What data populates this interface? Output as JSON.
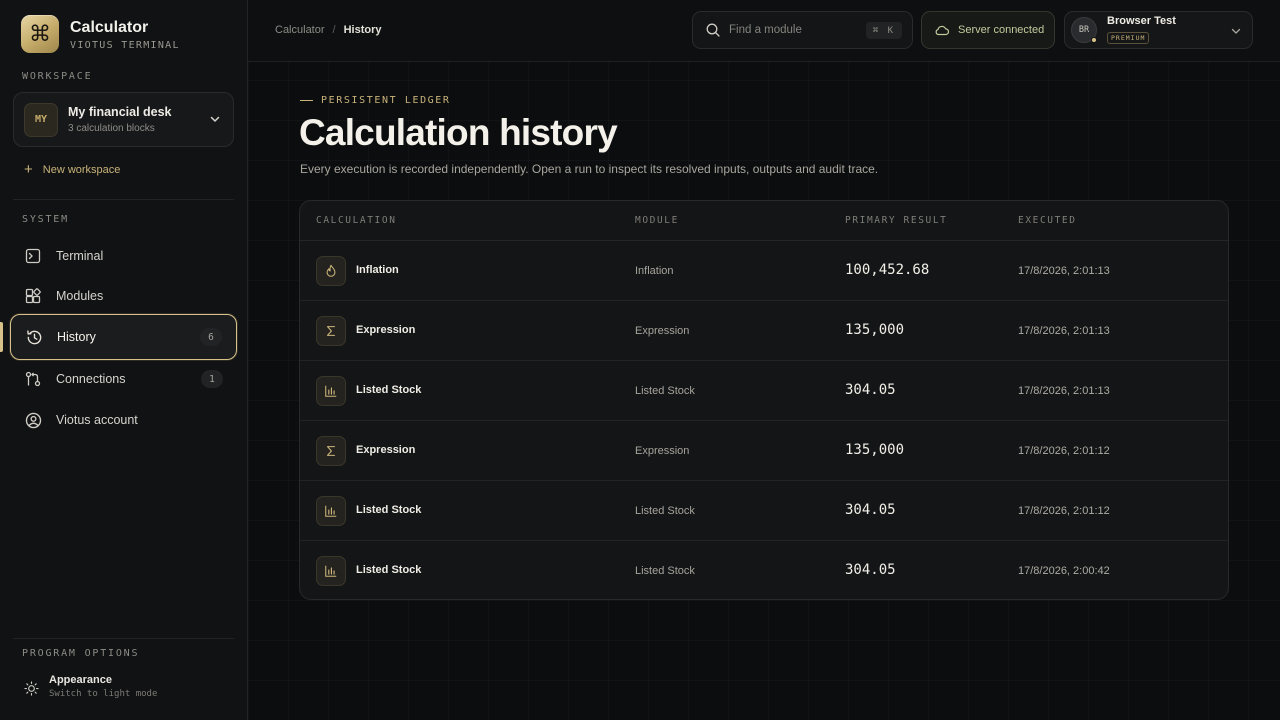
{
  "app": {
    "title": "Calculator",
    "subtitle": "VIOTUS TERMINAL",
    "logo_icon": "command-icon"
  },
  "workspace": {
    "section_label": "WORKSPACE",
    "avatar": "MY",
    "name": "My financial desk",
    "count": "3 calculation blocks",
    "new_label": "New workspace"
  },
  "system": {
    "section_label": "SYSTEM",
    "items": [
      {
        "label": "Terminal",
        "icon": "terminal-icon",
        "badge": ""
      },
      {
        "label": "Modules",
        "icon": "modules-icon",
        "badge": ""
      },
      {
        "label": "History",
        "icon": "history-icon",
        "badge": "6",
        "active": true
      },
      {
        "label": "Connections",
        "icon": "connections-icon",
        "badge": "1"
      },
      {
        "label": "Viotus account",
        "icon": "account-icon",
        "badge": ""
      }
    ]
  },
  "program_options": {
    "section_label": "PROGRAM OPTIONS",
    "appearance_title": "Appearance",
    "appearance_sub": "Switch to light mode"
  },
  "breadcrumb": {
    "root": "Calculator",
    "separator": "/",
    "current": "History"
  },
  "search": {
    "placeholder": "Find a module",
    "shortcut": "⌘ K"
  },
  "server": {
    "label": "Server connected"
  },
  "user": {
    "initials": "BR",
    "name": "Browser Test",
    "tier": "PREMIUM"
  },
  "page": {
    "eyebrow": "PERSISTENT LEDGER",
    "title": "Calculation history",
    "description": "Every execution is recorded independently. Open a run to inspect its resolved inputs, outputs and audit trace."
  },
  "table": {
    "headers": {
      "calculation": "CALCULATION",
      "module": "MODULE",
      "result": "PRIMARY RESULT",
      "executed": "EXECUTED"
    },
    "rows": [
      {
        "icon": "flame-icon",
        "name": "Inflation",
        "module": "Inflation",
        "result": "100,452.68",
        "executed": "17/8/2026, 2:01:13"
      },
      {
        "icon": "sigma-icon",
        "name": "Expression",
        "module": "Expression",
        "result": "135,000",
        "executed": "17/8/2026, 2:01:13"
      },
      {
        "icon": "bar-chart-icon",
        "name": "Listed Stock",
        "module": "Listed Stock",
        "result": "304.05",
        "executed": "17/8/2026, 2:01:13"
      },
      {
        "icon": "sigma-icon",
        "name": "Expression",
        "module": "Expression",
        "result": "135,000",
        "executed": "17/8/2026, 2:01:12"
      },
      {
        "icon": "bar-chart-icon",
        "name": "Listed Stock",
        "module": "Listed Stock",
        "result": "304.05",
        "executed": "17/8/2026, 2:01:12"
      },
      {
        "icon": "bar-chart-icon",
        "name": "Listed Stock",
        "module": "Listed Stock",
        "result": "304.05",
        "executed": "17/8/2026, 2:00:42"
      }
    ]
  },
  "colors": {
    "accent": "#d6c189",
    "background": "#0d0e0f",
    "sidebar": "#111213"
  }
}
